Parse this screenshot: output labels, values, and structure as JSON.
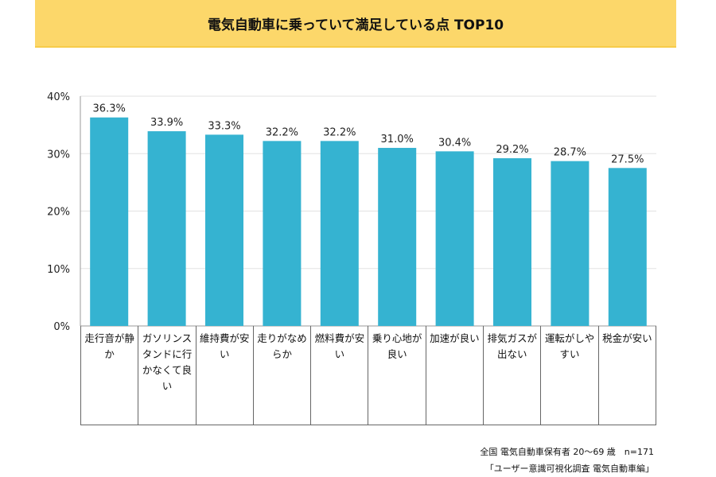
{
  "chart_data": {
    "type": "bar",
    "title": "電気自動車に乗っていて満足している点 TOP10",
    "categories": [
      "走行音が静か",
      "ガソリンスタンドに行かなくて良い",
      "維持費が安い",
      "走りがなめらか",
      "燃料費が安い",
      "乗り心地が良い",
      "加速が良い",
      "排気ガスが出ない",
      "運転がしやすい",
      "税金が安い"
    ],
    "values": [
      36.3,
      33.9,
      33.3,
      32.2,
      32.2,
      31.0,
      30.4,
      29.2,
      28.7,
      27.5
    ],
    "data_labels": [
      "36.3%",
      "33.9%",
      "33.3%",
      "32.2%",
      "32.2%",
      "31.0%",
      "30.4%",
      "29.2%",
      "28.7%",
      "27.5%"
    ],
    "ylim": [
      0,
      40
    ],
    "yticks": [
      "0%",
      "10%",
      "20%",
      "30%",
      "40%"
    ],
    "grid": true,
    "bar_color": "#35B3D1"
  },
  "notes": {
    "sample": "全国 電気自動車保有者 20〜69 歳　n=171",
    "source": "「ユーザー意識可視化調査 電気自動車編」"
  }
}
